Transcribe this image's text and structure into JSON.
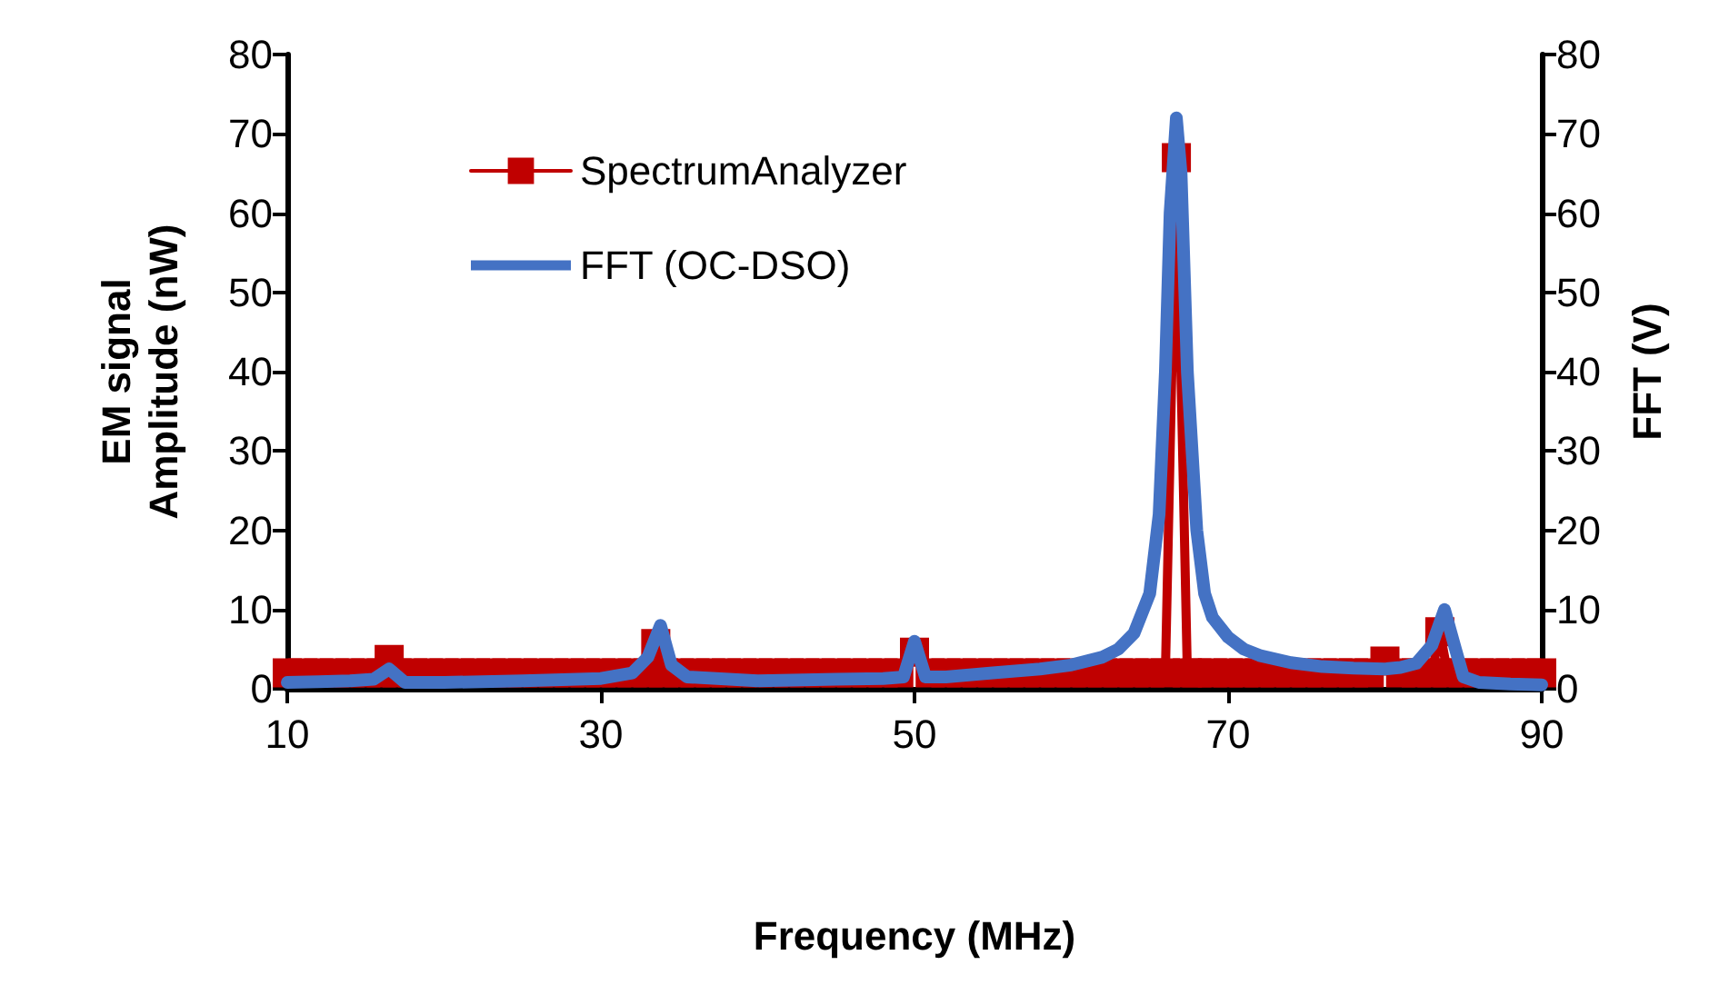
{
  "chart_data": {
    "type": "line",
    "xlabel": "Frequency (MHz)",
    "ylabel": "EM signal\nAmplitude (nW)",
    "y2label": "FFT (V)",
    "xlim": [
      10,
      90
    ],
    "xticks": [
      10,
      30,
      50,
      70,
      90
    ],
    "ylim": [
      0,
      80
    ],
    "yticks": [
      0,
      10,
      20,
      30,
      40,
      50,
      60,
      70,
      80
    ],
    "y2lim": [
      0,
      80
    ],
    "y2ticks": [
      0,
      10,
      20,
      30,
      40,
      50,
      60,
      70,
      80
    ],
    "grid": false,
    "legend": "top left",
    "series": [
      {
        "name": "SpectrumAnalyzer",
        "color": "#c00000",
        "marker": "square",
        "x": [
          10,
          11,
          12,
          13,
          14,
          15,
          16,
          16.5,
          17,
          18,
          19,
          20,
          21,
          22,
          23,
          24,
          25,
          26,
          27,
          28,
          29,
          30,
          31,
          32,
          33,
          33.5,
          34,
          35,
          36,
          37,
          38,
          39,
          40,
          41,
          42,
          43,
          44,
          45,
          46,
          47,
          48,
          49,
          50,
          51,
          52,
          53,
          54,
          55,
          56,
          57,
          58,
          59,
          60,
          61,
          62,
          63,
          64,
          65,
          66,
          66.7,
          67.4,
          68,
          69,
          70,
          71,
          72,
          73,
          74,
          75,
          76,
          77,
          78,
          79,
          80,
          81,
          82,
          83,
          83.5,
          84,
          85,
          86,
          87,
          88,
          89,
          90
        ],
        "values": [
          2,
          2,
          2,
          2,
          2,
          2,
          2,
          3.7,
          2,
          2,
          2,
          2,
          2,
          2,
          2,
          2,
          2,
          2,
          2,
          2,
          2,
          2,
          2,
          2,
          2,
          5.7,
          2,
          2,
          2,
          2,
          2,
          2,
          2,
          2,
          2,
          2,
          2,
          2,
          2,
          2,
          2,
          2,
          4.6,
          2,
          2,
          2,
          2,
          2,
          2,
          2,
          2,
          2,
          2,
          2,
          2,
          2,
          2,
          2,
          2,
          67,
          2,
          2,
          2,
          2,
          2,
          2,
          2,
          2,
          2,
          2,
          2,
          2,
          2,
          3.5,
          2,
          2,
          2,
          7.2,
          2,
          2,
          2,
          2,
          2,
          2,
          2
        ]
      },
      {
        "name": "FFT (OC-DSO)",
        "color": "#4472c4",
        "axis": "y2",
        "marker": "none",
        "x": [
          10,
          12,
          14,
          15.5,
          16.5,
          17.5,
          20,
          25,
          30,
          32,
          33,
          33.8,
          34.5,
          35.5,
          40,
          45,
          48,
          49.3,
          50,
          50.7,
          52,
          55,
          58,
          60,
          62,
          63,
          64,
          65,
          65.6,
          66,
          66.3,
          66.7,
          67,
          67.4,
          68,
          68.5,
          69,
          70,
          71,
          72,
          74,
          76,
          78,
          80,
          81,
          82,
          83,
          83.8,
          84.5,
          85,
          86,
          88,
          90
        ],
        "values": [
          0.8,
          0.9,
          1,
          1.2,
          2.5,
          0.8,
          0.8,
          1,
          1.3,
          2,
          4,
          8,
          3,
          1.5,
          1,
          1.2,
          1.3,
          1.5,
          6,
          1.5,
          1.5,
          2,
          2.5,
          3,
          4,
          5,
          7,
          12,
          22,
          40,
          60,
          72,
          65,
          40,
          20,
          12,
          9,
          6.5,
          5,
          4.2,
          3.3,
          2.8,
          2.6,
          2.5,
          2.7,
          3.2,
          5.5,
          10,
          5,
          1.5,
          0.8,
          0.6,
          0.5
        ]
      }
    ]
  }
}
